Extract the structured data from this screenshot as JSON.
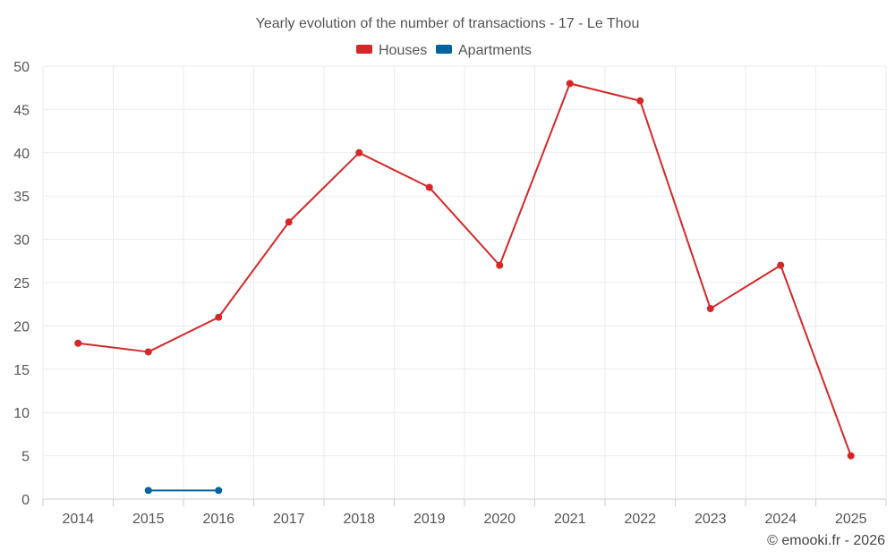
{
  "chart_data": {
    "type": "line",
    "title": "Yearly evolution of the number of transactions - 17 - Le Thou",
    "xlabel": "",
    "ylabel": "",
    "categories": [
      "2014",
      "2015",
      "2016",
      "2017",
      "2018",
      "2019",
      "2020",
      "2021",
      "2022",
      "2023",
      "2024",
      "2025"
    ],
    "ylim": [
      0,
      50
    ],
    "yticks": [
      0,
      5,
      10,
      15,
      20,
      25,
      30,
      35,
      40,
      45,
      50
    ],
    "grid": true,
    "legend_position": "top-center",
    "series": [
      {
        "name": "Houses",
        "color": "#d62728",
        "values": [
          18,
          17,
          21,
          32,
          40,
          36,
          27,
          48,
          46,
          22,
          27,
          5
        ]
      },
      {
        "name": "Apartments",
        "color": "#00639e",
        "values": [
          null,
          1,
          1,
          null,
          null,
          null,
          null,
          null,
          null,
          null,
          null,
          null
        ]
      }
    ]
  },
  "credit": "© emooki.fr - 2026"
}
